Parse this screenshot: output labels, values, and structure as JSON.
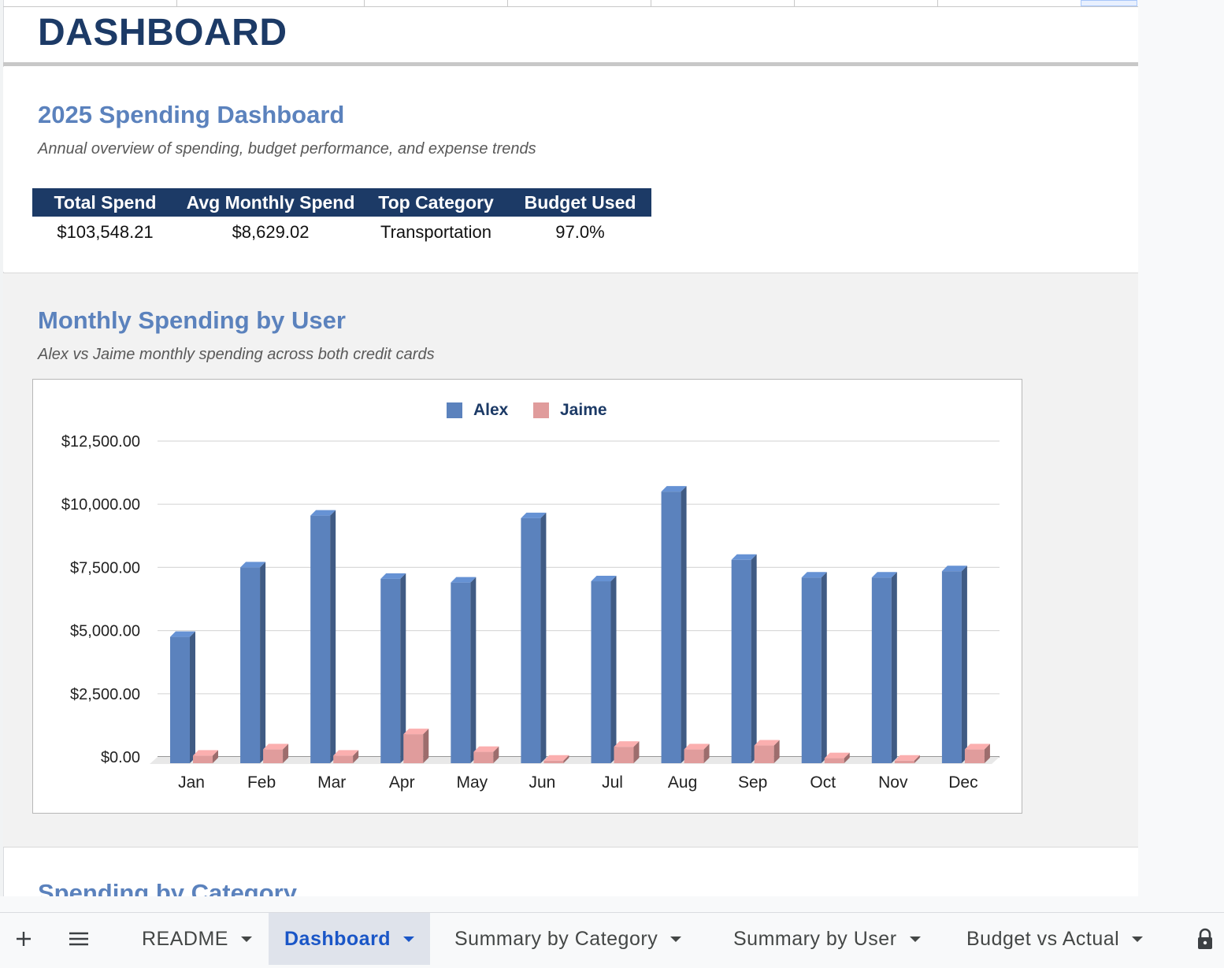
{
  "sheet": {
    "title": "DASHBOARD"
  },
  "overview": {
    "heading": "2025 Spending Dashboard",
    "subtitle": "Annual overview of spending, budget performance, and expense trends",
    "kpi_headers": [
      "Total Spend",
      "Avg Monthly Spend",
      "Top Category",
      "Budget Used"
    ],
    "kpi_values": [
      "$103,548.21",
      "$8,629.02",
      "Transportation",
      "97.0%"
    ]
  },
  "monthly": {
    "heading": "Monthly Spending by User",
    "subtitle": "Alex vs Jaime monthly spending across both credit cards"
  },
  "category": {
    "heading": "Spending by Category"
  },
  "chart_data": {
    "type": "bar",
    "title": "",
    "xlabel": "",
    "ylabel": "",
    "categories": [
      "Jan",
      "Feb",
      "Mar",
      "Apr",
      "May",
      "Jun",
      "Jul",
      "Aug",
      "Sep",
      "Oct",
      "Nov",
      "Dec"
    ],
    "series": [
      {
        "name": "Alex",
        "color": "#5b82bd",
        "values": [
          5000,
          7750,
          9800,
          7300,
          7150,
          9700,
          7200,
          10750,
          8050,
          7350,
          7350,
          7600
        ]
      },
      {
        "name": "Jaime",
        "color": "#e09c9c",
        "values": [
          300,
          550,
          300,
          1150,
          450,
          100,
          650,
          550,
          700,
          200,
          100,
          550
        ]
      }
    ],
    "ylim": [
      0,
      12500
    ],
    "yticks": [
      "$0.00",
      "$2,500.00",
      "$5,000.00",
      "$7,500.00",
      "$10,000.00",
      "$12,500.00"
    ],
    "ytick_values": [
      0,
      2500,
      5000,
      7500,
      10000,
      12500
    ],
    "grid": true,
    "legend": "top",
    "style": "3d"
  },
  "tabbar": {
    "add_icon": "plus-icon",
    "menu_icon": "menu-icon",
    "lock_icon": "lock-icon",
    "tabs": [
      "README",
      "Dashboard",
      "Summary by Category",
      "Summary by User",
      "Budget vs Actual"
    ],
    "active": "Dashboard"
  }
}
